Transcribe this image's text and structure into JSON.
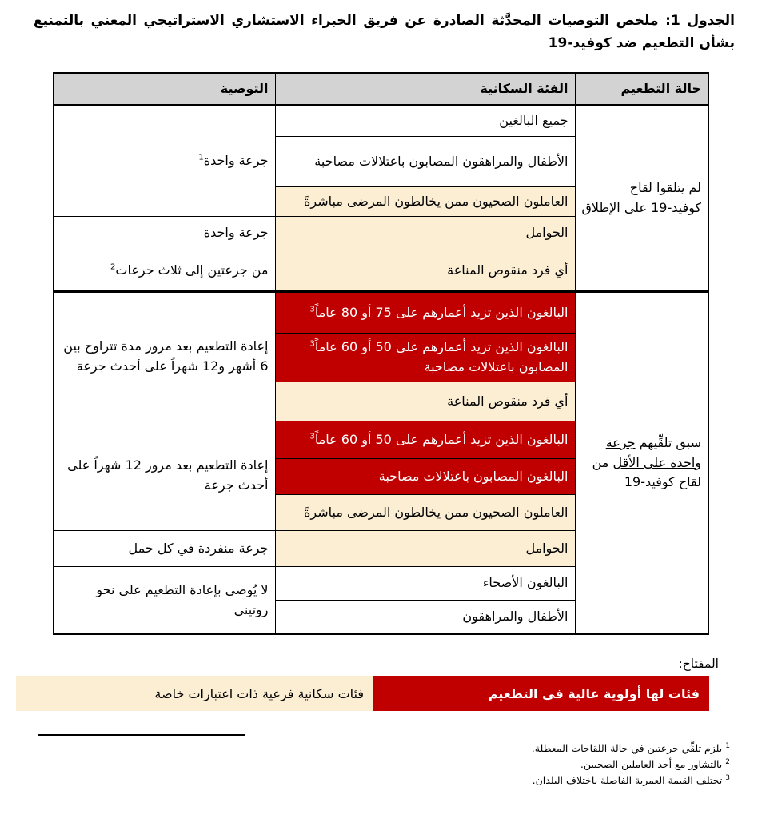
{
  "page": {
    "title": "الجدول 1: ملخص التوصيات المحدَّثة الصادرة عن فريق الخبراء الاستشاري الاستراتيجي المعني بالتمنيع بشأن التطعيم ضد كوفيد-19"
  },
  "table": {
    "header": {
      "status": "حالة التطعيم",
      "population": "الفئة السكانية",
      "recommendation": "التوصية"
    },
    "status": {
      "never": "لم يتلقوا لقاح كوفيد-19 على الإطلاق",
      "prior_pre": "سبق تلقِّيهم ",
      "prior_underlined": "جرعة واحدة على الأقل",
      "prior_post": " من لقاح كوفيد-19"
    },
    "population": {
      "all_adults": "جميع البالغين",
      "children_adolescents_comorbid": "الأطفال والمراهقون المصابون باعتلالات مصاحبة",
      "health_workers": "العاملون الصحيون ممن يخالطون المرضى مباشرةً",
      "pregnant": "الحوامل",
      "immunocompromised": "أي فرد منقوص المناعة",
      "adults_over_75_80": "البالغون الذين تزيد أعمارهم على 75 أو 80 عاماً",
      "adults_over_50_60": "البالغون الذين تزيد أعمارهم على 50 أو 60 عاماً",
      "comorbid_suffix": "المصابون باعتلالات مصاحبة",
      "adults_comorbid": "البالغون المصابون باعتلالات مصاحبة",
      "healthy_adults": "البالغون الأصحاء",
      "children_adolescents": "الأطفال والمراهقون",
      "age_footnote_sup": "3"
    },
    "recommendation": {
      "one_dose": "جرعة واحدة",
      "one_dose_sup": "1",
      "one_dose_pregnant": "جرعة واحدة",
      "two_to_three": "من جرعتين إلى ثلاث جرعات",
      "two_to_three_sup": "2",
      "revacc_6_12": "إعادة التطعيم بعد مرور مدة تتراوح بين 6 أشهر و12 شهراً على أحدث جرعة",
      "revacc_12": "إعادة التطعيم بعد مرور 12 شهراً على أحدث جرعة",
      "single_each_pregnancy": "جرعة منفردة في كل حمل",
      "no_routine": "لا يُوصى بإعادة التطعيم على نحو روتيني"
    }
  },
  "key": {
    "label": "المفتاح:",
    "high_priority": "فئات لها أولوية عالية في التطعيم",
    "special_considerations": "فئات سكانية فرعية ذات اعتبارات خاصة"
  },
  "footnotes": [
    {
      "sup": "1",
      "text": "يلزم تلقِّي جرعتين في حالة اللقاحات المعطلة."
    },
    {
      "sup": "2",
      "text": "بالتشاور مع أحد العاملين الصحيين."
    },
    {
      "sup": "3",
      "text": "تختلف القيمة العمرية الفاصلة باختلاف البلدان."
    }
  ],
  "colors": {
    "highlight_red": "#C00000",
    "highlight_cream": "#FBEED3",
    "header_gray": "#D3D3D3",
    "border": "#000000"
  }
}
